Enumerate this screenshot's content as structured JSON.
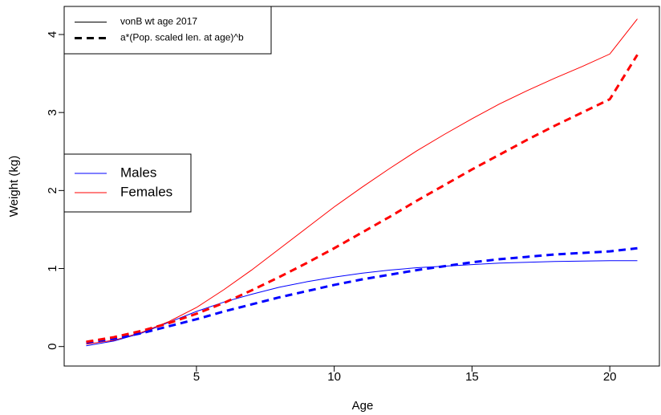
{
  "chart_data": {
    "type": "line",
    "x_label": "Age",
    "y_label": "Weight (kg)",
    "x": [
      1,
      2,
      3,
      4,
      5,
      6,
      7,
      8,
      9,
      10,
      11,
      12,
      13,
      14,
      15,
      16,
      17,
      18,
      19,
      20,
      21
    ],
    "series": [
      {
        "color": "#0000ff",
        "dashed": false,
        "values": [
          0.01,
          0.07,
          0.17,
          0.31,
          0.45,
          0.57,
          0.67,
          0.76,
          0.83,
          0.89,
          0.94,
          0.98,
          1.01,
          1.03,
          1.05,
          1.07,
          1.08,
          1.09,
          1.095,
          1.1,
          1.1
        ]
      },
      {
        "color": "#ff0000",
        "dashed": false,
        "values": [
          0.03,
          0.08,
          0.18,
          0.32,
          0.5,
          0.73,
          0.98,
          1.25,
          1.52,
          1.79,
          2.04,
          2.28,
          2.51,
          2.72,
          2.92,
          3.11,
          3.28,
          3.44,
          3.59,
          3.75,
          4.2
        ]
      },
      {
        "color": "#0000ff",
        "dashed": true,
        "values": [
          0.05,
          0.1,
          0.17,
          0.26,
          0.35,
          0.45,
          0.54,
          0.63,
          0.71,
          0.79,
          0.86,
          0.92,
          0.98,
          1.03,
          1.08,
          1.12,
          1.15,
          1.18,
          1.2,
          1.22,
          1.26
        ]
      },
      {
        "color": "#ff0000",
        "dashed": true,
        "values": [
          0.06,
          0.12,
          0.2,
          0.3,
          0.42,
          0.56,
          0.72,
          0.89,
          1.07,
          1.26,
          1.46,
          1.66,
          1.87,
          2.07,
          2.27,
          2.46,
          2.65,
          2.83,
          3.0,
          3.17,
          3.74
        ]
      }
    ],
    "legends": [
      {
        "entries": [
          {
            "label": "vonB wt age 2017",
            "color": "#000000",
            "dashed": false
          },
          {
            "label": "a*(Pop. scaled len. at age)^b",
            "color": "#000000",
            "dashed": true
          }
        ]
      },
      {
        "entries": [
          {
            "label": "Males",
            "color": "#0000ff",
            "dashed": false
          },
          {
            "label": "Females",
            "color": "#ff0000",
            "dashed": false
          }
        ]
      }
    ],
    "xlim": [
      0.2,
      21.8
    ],
    "ylim": [
      -0.25,
      4.36
    ],
    "xticks": [
      5,
      10,
      15,
      20
    ],
    "yticks": [
      0,
      1,
      2,
      3,
      4
    ]
  }
}
